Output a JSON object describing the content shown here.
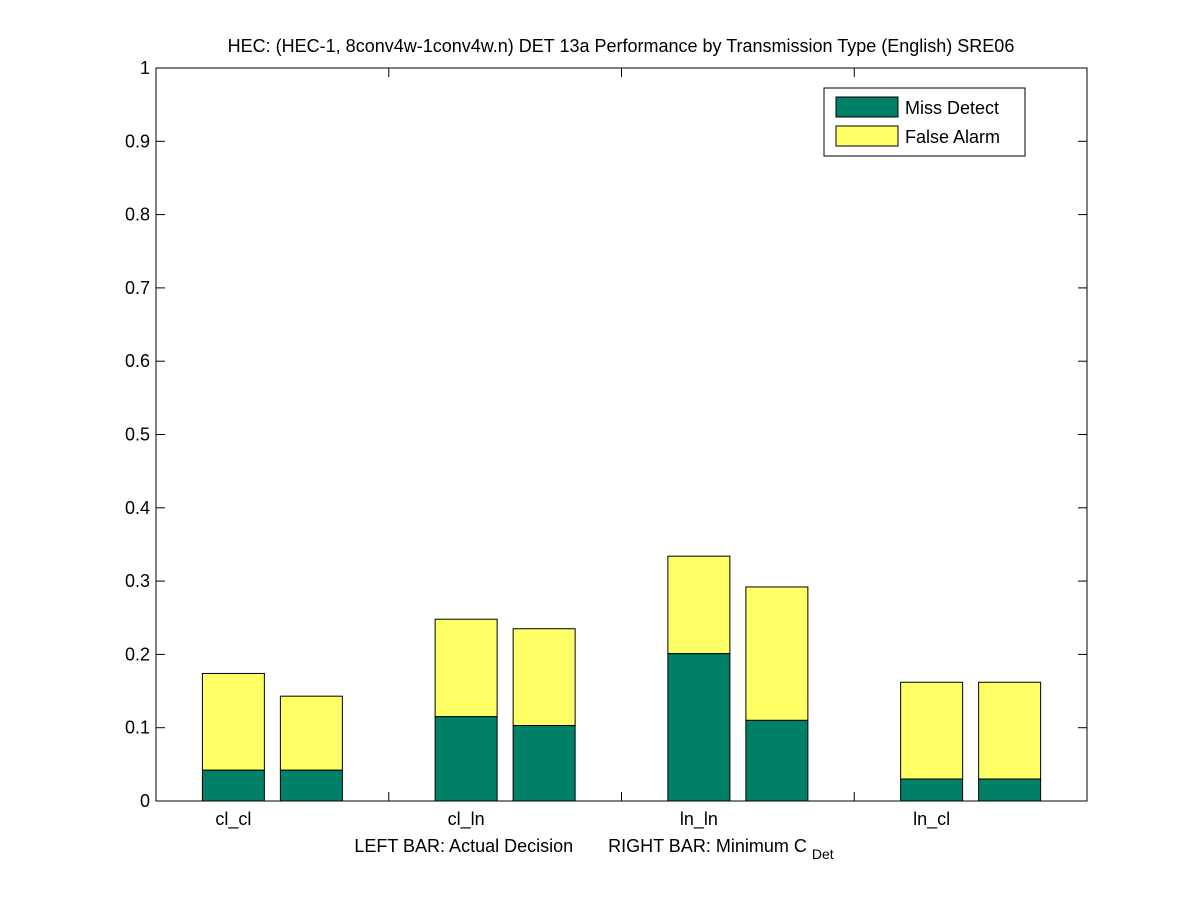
{
  "chart_data": {
    "type": "bar",
    "stacked": true,
    "title": "HEC: (HEC-1, 8conv4w-1conv4w.n) DET 13a Performance by Transmission Type (English) SRE06",
    "categories": [
      "cl_cl",
      "cl_ln",
      "ln_ln",
      "ln_cl"
    ],
    "xlabel": {
      "left_part": "LEFT BAR: Actual Decision",
      "right_prefix": "RIGHT BAR: Minimum C",
      "right_subscript": "Det"
    },
    "ylabel": "",
    "ylim": [
      0,
      1
    ],
    "yticks": [
      "0",
      "0.1",
      "0.2",
      "0.3",
      "0.4",
      "0.5",
      "0.6",
      "0.7",
      "0.8",
      "0.9",
      "1"
    ],
    "legend": {
      "placement": "top-right",
      "entries": [
        {
          "name": "Miss Detect",
          "color": "#008066"
        },
        {
          "name": "False Alarm",
          "color": "#ffff66"
        }
      ]
    },
    "series": [
      {
        "name": "Actual Decision (left bar)",
        "miss_detect": [
          0.042,
          0.115,
          0.201,
          0.03
        ],
        "total": [
          0.174,
          0.248,
          0.334,
          0.162
        ]
      },
      {
        "name": "Minimum C_Det (right bar)",
        "miss_detect": [
          0.042,
          0.103,
          0.11,
          0.03
        ],
        "total": [
          0.143,
          0.235,
          0.292,
          0.162
        ]
      }
    ],
    "colors": {
      "miss_detect": "#008066",
      "false_alarm": "#ffff66"
    }
  }
}
